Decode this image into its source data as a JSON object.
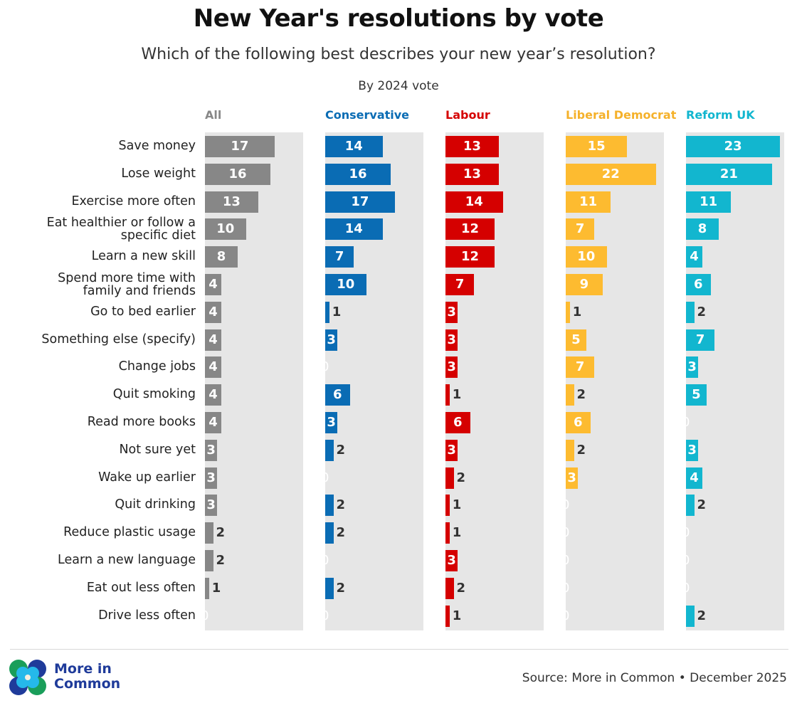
{
  "chart_data": {
    "type": "bar",
    "orientation": "horizontal",
    "title": "New Year's resolutions by vote",
    "subtitle": "Which of the following best describes your new year’s resolution?",
    "note": "By 2024 vote",
    "xlim": [
      0,
      24
    ],
    "grid": false,
    "categories": [
      "Save money",
      "Lose weight",
      "Exercise more often",
      "Eat healthier or follow a specific diet",
      "Learn a new skill",
      "Spend more time with family and friends",
      "Go to bed earlier",
      "Something else (specify)",
      "Change jobs",
      "Quit smoking",
      "Read more books",
      "Not sure yet",
      "Wake up earlier",
      "Quit drinking",
      "Reduce plastic usage",
      "Learn a new language",
      "Eat out less often",
      "Drive less often"
    ],
    "series": [
      {
        "name": "All",
        "color": "#878787",
        "values": [
          17,
          16,
          13,
          10,
          8,
          4,
          4,
          4,
          4,
          4,
          4,
          3,
          3,
          3,
          2,
          2,
          1,
          0
        ]
      },
      {
        "name": "Conservative",
        "color": "#0a6cb4",
        "values": [
          14,
          16,
          17,
          14,
          7,
          10,
          1,
          3,
          0,
          6,
          3,
          2,
          0,
          2,
          2,
          0,
          2,
          0
        ]
      },
      {
        "name": "Labour",
        "color": "#d50000",
        "values": [
          13,
          13,
          14,
          12,
          12,
          7,
          3,
          3,
          3,
          1,
          6,
          3,
          2,
          1,
          1,
          3,
          2,
          1
        ]
      },
      {
        "name": "Liberal Democrat",
        "color": "#fdbb30",
        "values": [
          15,
          22,
          11,
          7,
          10,
          9,
          1,
          5,
          7,
          2,
          6,
          2,
          3,
          0,
          0,
          0,
          0,
          0
        ]
      },
      {
        "name": "Reform UK",
        "color": "#12b6cf",
        "values": [
          23,
          21,
          11,
          8,
          4,
          6,
          2,
          7,
          3,
          5,
          0,
          3,
          4,
          2,
          0,
          0,
          0,
          2
        ]
      }
    ]
  },
  "footer": {
    "source": "Source: More in Common • December 2025",
    "logo_line1": "More in",
    "logo_line2": "Common"
  }
}
